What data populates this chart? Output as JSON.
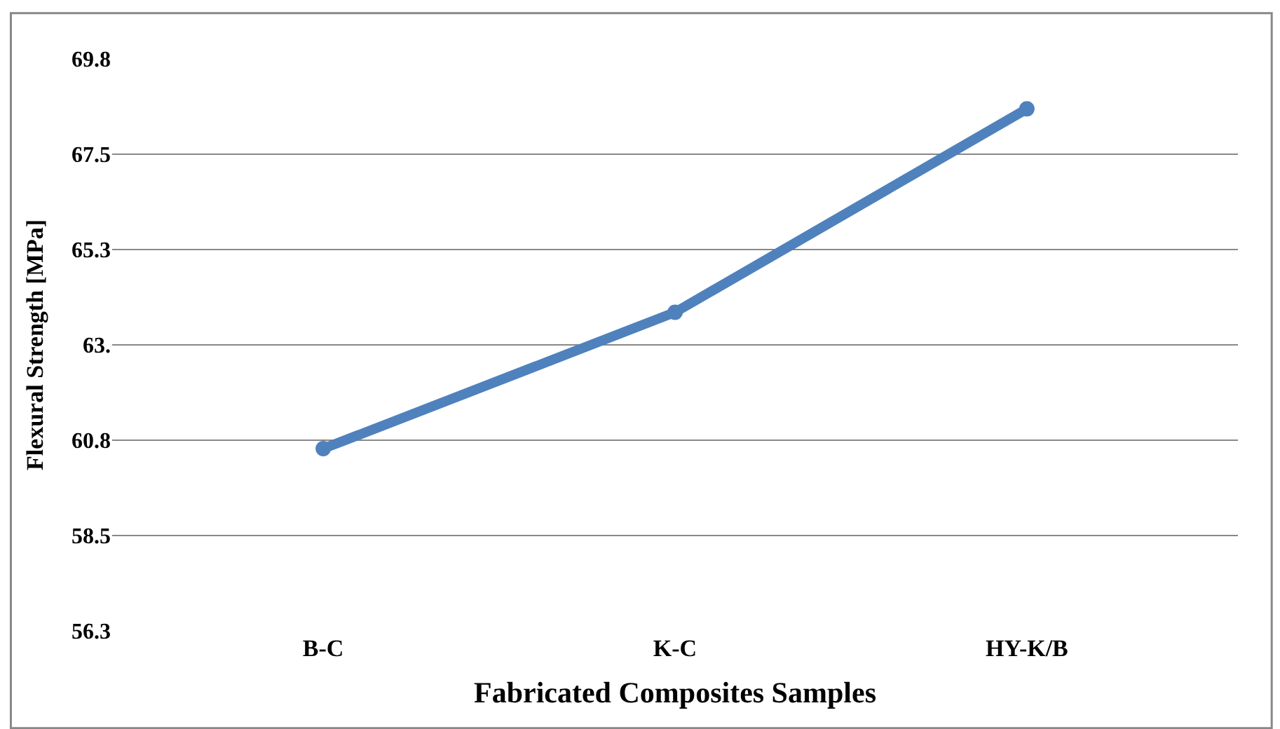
{
  "chart_data": {
    "type": "line",
    "xlabel": "Fabricated Composites Samples",
    "ylabel": "Flexural Strength [MPa]",
    "categories": [
      "B-C",
      "K-C",
      "HY-K/B"
    ],
    "series": [
      {
        "color": "#4f81bd",
        "values": [
          60.55,
          63.77,
          68.57
        ]
      }
    ],
    "ylim": [
      56.25,
      69.75
    ],
    "yticks": [
      {
        "value": 56.25,
        "label": "56.3"
      },
      58.5,
      {
        "value": 60.75,
        "label": "60.8"
      },
      {
        "value": 63,
        "label": "63."
      },
      {
        "value": 65.25,
        "label": "65.3"
      },
      67.5,
      {
        "value": 69.75,
        "label": "69.8"
      }
    ],
    "grid": "y",
    "marker": "circle",
    "line_style": "solid"
  }
}
